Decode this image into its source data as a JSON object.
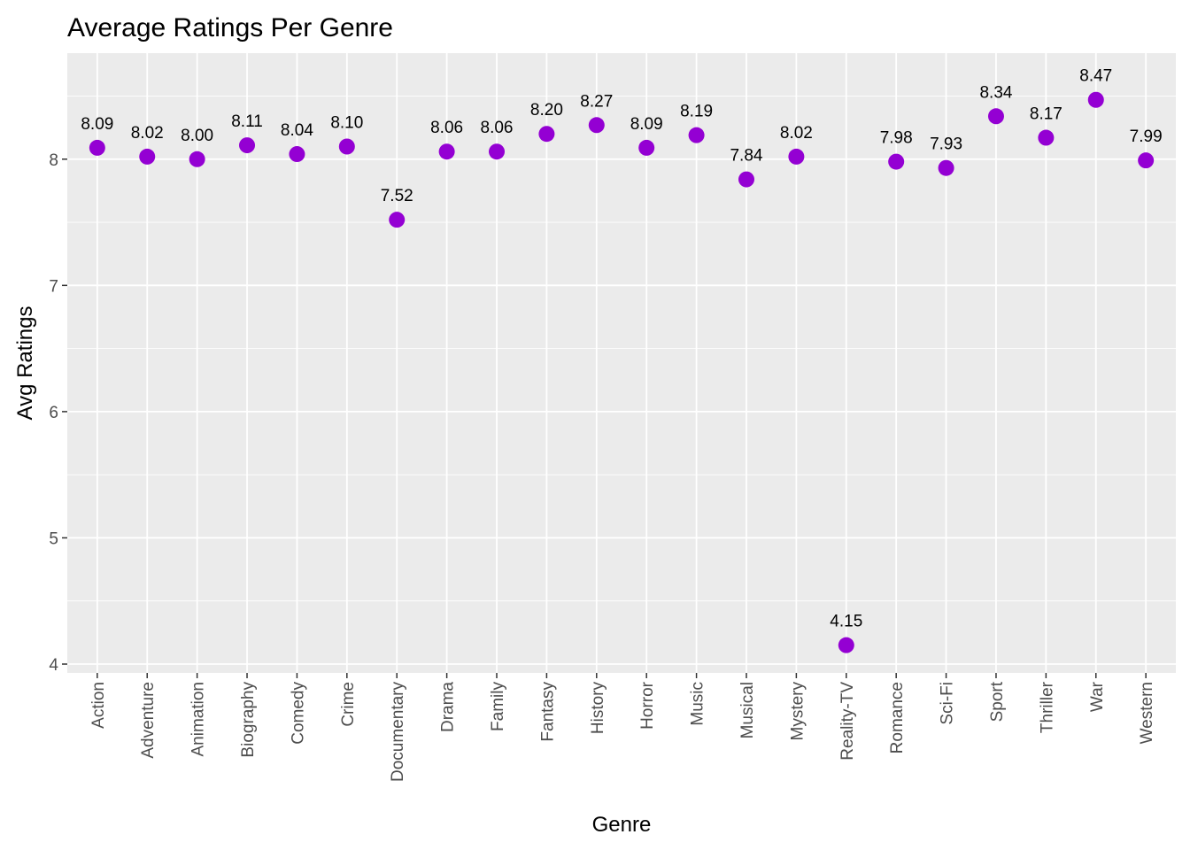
{
  "chart_data": {
    "type": "scatter",
    "title": "Average Ratings Per Genre",
    "xlabel": "Genre",
    "ylabel": "Avg Ratings",
    "categories": [
      "Action",
      "Adventure",
      "Animation",
      "Biography",
      "Comedy",
      "Crime",
      "Documentary",
      "Drama",
      "Family",
      "Fantasy",
      "History",
      "Horror",
      "Music",
      "Musical",
      "Mystery",
      "Reality-TV",
      "Romance",
      "Sci-Fi",
      "Sport",
      "Thriller",
      "War",
      "Western"
    ],
    "values": [
      8.09,
      8.02,
      8.0,
      8.11,
      8.04,
      8.1,
      7.52,
      8.06,
      8.06,
      8.2,
      8.27,
      8.09,
      8.19,
      7.84,
      8.02,
      4.15,
      7.98,
      7.93,
      8.34,
      8.17,
      8.47,
      7.99
    ],
    "data_labels": [
      "8.09",
      "8.02",
      "8.00",
      "8.11",
      "8.04",
      "8.10",
      "7.52",
      "8.06",
      "8.06",
      "8.20",
      "8.27",
      "8.09",
      "8.19",
      "7.84",
      "8.02",
      "4.15",
      "7.98",
      "7.93",
      "8.34",
      "8.17",
      "8.47",
      "7.99"
    ],
    "yticks": [
      4,
      5,
      6,
      7,
      8
    ],
    "ylim": [
      3.93,
      8.84
    ],
    "grid": true,
    "legend": "none",
    "colors": {
      "point": "#9400D3",
      "panel": "#EBEBEB",
      "grid": "#FFFFFF"
    }
  }
}
